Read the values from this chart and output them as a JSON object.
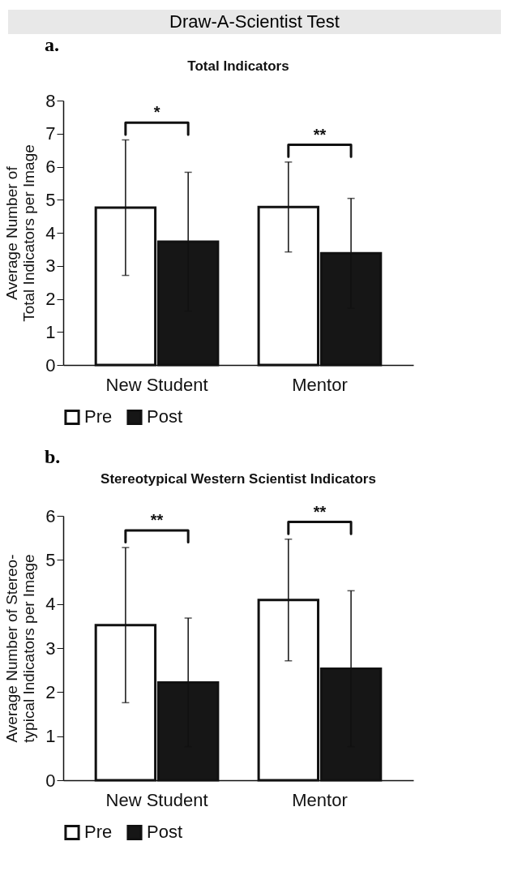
{
  "chart_data": [
    {
      "type": "bar",
      "title": "Total Indicators",
      "ylabel": "Average Number of\nTotal Indicators per Image",
      "categories": [
        "New Student",
        "Mentor"
      ],
      "series": [
        {
          "name": "Pre",
          "color": "#ffffff",
          "values": [
            4.76,
            4.78
          ],
          "errors": [
            2.05,
            1.36
          ]
        },
        {
          "name": "Post",
          "color": "#161616",
          "values": [
            3.73,
            3.38
          ],
          "errors": [
            2.1,
            1.66
          ]
        }
      ],
      "ylim": [
        0,
        8
      ],
      "yticks": [
        0,
        1,
        2,
        3,
        4,
        5,
        6,
        7,
        8
      ],
      "legend": "bottom",
      "annotations": [
        "Draw-A-Scientist Test",
        "a.",
        "*",
        "**"
      ]
    },
    {
      "type": "bar",
      "title": "Stereotypical Western Scientist Indicators",
      "ylabel": "Average Number of Stereo-\ntypical Indicators per Image",
      "categories": [
        "New Student",
        "Mentor"
      ],
      "series": [
        {
          "name": "Pre",
          "color": "#ffffff",
          "values": [
            3.52,
            4.09
          ],
          "errors": [
            1.76,
            1.38
          ]
        },
        {
          "name": "Post",
          "color": "#161616",
          "values": [
            2.22,
            2.53
          ],
          "errors": [
            1.46,
            1.77
          ]
        }
      ],
      "ylim": [
        0,
        6
      ],
      "yticks": [
        0,
        1,
        2,
        3,
        4,
        5,
        6
      ],
      "legend": "bottom",
      "annotations": [
        "b.",
        "**",
        "**"
      ]
    }
  ]
}
